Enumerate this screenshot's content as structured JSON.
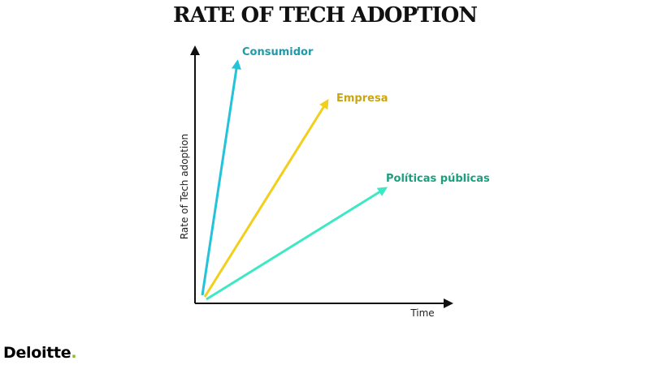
{
  "title": "RATE OF TECH ADOPTION",
  "axes": {
    "y_label": "Rate of Tech adoption",
    "x_label": "Time"
  },
  "series": [
    {
      "id": "consumidor",
      "label": "Consumidor",
      "color": "#23c3d9",
      "label_color": "#1f9aa8"
    },
    {
      "id": "empresa",
      "label": "Empresa",
      "color": "#f2cf1d",
      "label_color": "#c9a512"
    },
    {
      "id": "politicas",
      "label": "Políticas públicas",
      "color": "#3ee8c4",
      "label_color": "#1aa07f"
    }
  ],
  "brand": {
    "name": "Deloitte",
    "dot": ".",
    "dot_color": "#86bc25"
  }
}
